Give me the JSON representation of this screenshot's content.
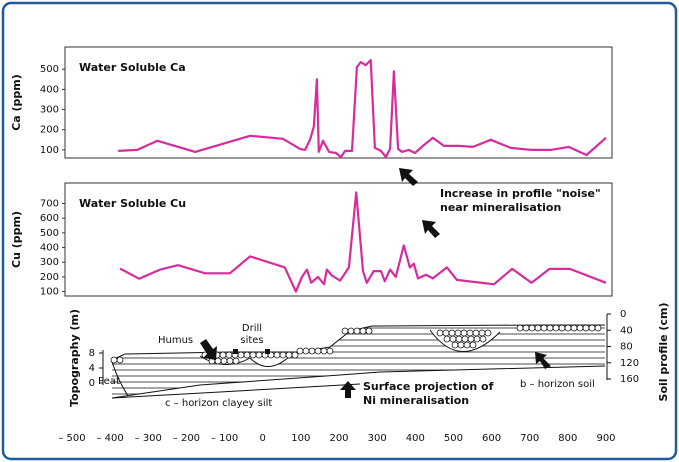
{
  "chart_data": [
    {
      "type": "line",
      "title": "Water Soluble Ca",
      "ylabel": "Ca (ppm)",
      "color": "#d62c9c",
      "xlim": [
        -500,
        900
      ],
      "ylim": [
        60,
        610
      ],
      "yticks": [
        100,
        200,
        300,
        400,
        500
      ],
      "x": [
        -379,
        -329,
        -276,
        -177,
        -33,
        53,
        98,
        111,
        124,
        134,
        142,
        147,
        158,
        174,
        192,
        205,
        216,
        234,
        247,
        257,
        270,
        283,
        294,
        310,
        323,
        334,
        344,
        355,
        365,
        383,
        399,
        420,
        446,
        475,
        514,
        551,
        598,
        650,
        703,
        755,
        802,
        849,
        900
      ],
      "values": [
        95,
        100,
        145,
        90,
        170,
        155,
        105,
        100,
        150,
        215,
        450,
        90,
        145,
        90,
        85,
        65,
        95,
        95,
        510,
        535,
        520,
        545,
        110,
        95,
        65,
        105,
        490,
        105,
        90,
        100,
        85,
        120,
        160,
        120,
        120,
        115,
        150,
        110,
        100,
        100,
        115,
        75,
        160
      ]
    },
    {
      "type": "line",
      "title": "Water Soluble Cu",
      "ylabel": "Cu (ppm)",
      "color": "#d62c9c",
      "xlim": [
        -500,
        900
      ],
      "ylim": [
        70,
        840
      ],
      "yticks": [
        100,
        200,
        300,
        400,
        500,
        600,
        700
      ],
      "annotation": [
        "Increase in profile \"noise\"",
        "near mineralisation"
      ],
      "x": [
        -374,
        -324,
        -269,
        -222,
        -151,
        -86,
        -33,
        58,
        87,
        103,
        116,
        127,
        145,
        161,
        168,
        181,
        203,
        226,
        245,
        263,
        273,
        291,
        310,
        320,
        334,
        349,
        370,
        386,
        396,
        407,
        428,
        446,
        483,
        509,
        606,
        654,
        705,
        752,
        805,
        900
      ],
      "values": [
        257,
        188,
        250,
        280,
        225,
        225,
        340,
        265,
        100,
        200,
        250,
        160,
        200,
        150,
        250,
        210,
        175,
        265,
        775,
        240,
        160,
        240,
        240,
        170,
        250,
        200,
        415,
        265,
        290,
        190,
        215,
        190,
        265,
        180,
        150,
        255,
        160,
        255,
        255,
        160
      ]
    }
  ],
  "cross_section": {
    "xlim": [
      -500,
      900
    ],
    "xticks": [
      {
        "value": -500,
        "label": "– 500"
      },
      {
        "value": -400,
        "label": "– 400"
      },
      {
        "value": -300,
        "label": "– 300"
      },
      {
        "value": -200,
        "label": "– 200"
      },
      {
        "value": -100,
        "label": "– 100"
      },
      0,
      100,
      200,
      300,
      400,
      500,
      600,
      700,
      800,
      900
    ],
    "topography": {
      "label": "Topography (m)",
      "ylim": [
        0,
        8
      ],
      "yticks": [
        0,
        4,
        8
      ]
    },
    "soil_profile": {
      "label": "Soil profile (cm)",
      "ylim": [
        0,
        160
      ],
      "yticks": [
        0,
        40,
        80,
        120,
        160
      ]
    },
    "labels": {
      "humus": "Humus",
      "drill_sites": [
        "Drill",
        "sites"
      ],
      "peat": "Peat",
      "b_horizon": "b – horizon soil",
      "c_horizon": "c – horizon clayey silt",
      "projection": [
        "Surface projection of",
        "Ni mineralisation"
      ]
    }
  }
}
